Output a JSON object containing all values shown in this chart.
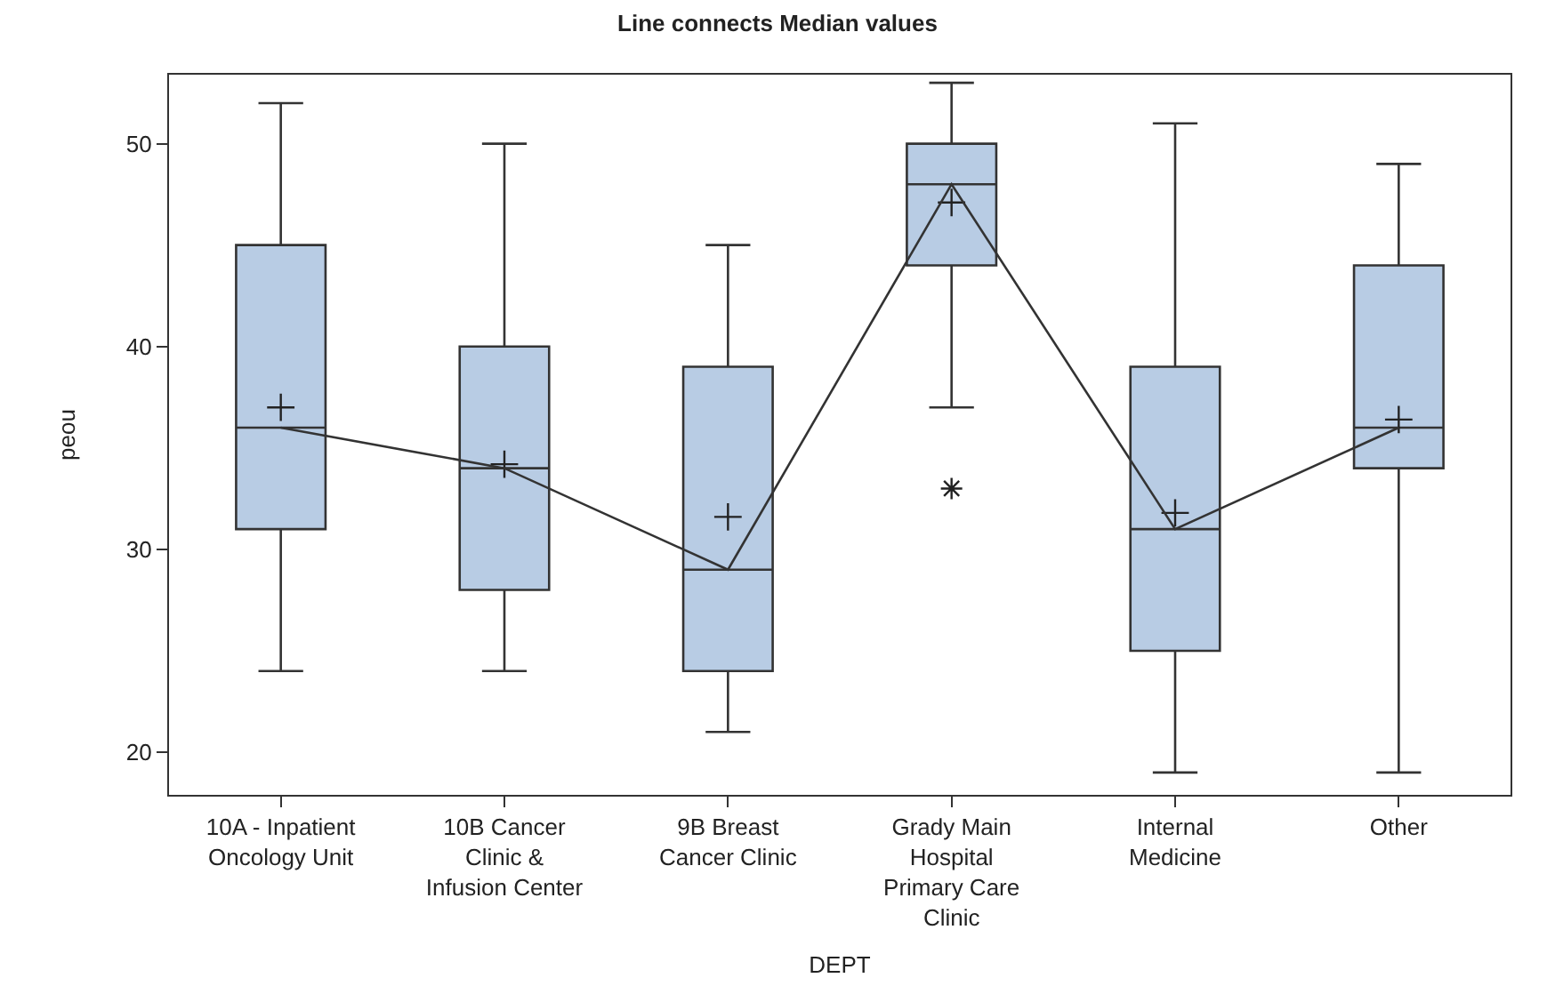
{
  "chart_data": {
    "type": "box",
    "title": "Line connects Median values",
    "xlabel": "DEPT",
    "ylabel": "peou",
    "categories": [
      "10A - Inpatient Oncology Unit",
      "10B Cancer Clinic & Infusion Center",
      "9B Breast Cancer Clinic",
      "Grady Main Hospital Primary Care Clinic",
      "Internal Medicine",
      "Other"
    ],
    "series": [
      {
        "color": "#b8cce4",
        "boxes": [
          {
            "low": 24,
            "q1": 31,
            "median": 36,
            "q3": 45,
            "high": 52,
            "mean": 37.0
          },
          {
            "low": 24,
            "q1": 28,
            "median": 34,
            "q3": 40,
            "high": 50,
            "mean": 34.2
          },
          {
            "low": 21,
            "q1": 24,
            "median": 29,
            "q3": 39,
            "high": 45,
            "mean": 31.6
          },
          {
            "low": 37,
            "q1": 44,
            "median": 48,
            "q3": 50,
            "high": 53,
            "mean": 47.1,
            "outliers": [
              33
            ]
          },
          {
            "low": 19,
            "q1": 25,
            "median": 31,
            "q3": 39,
            "high": 51,
            "mean": 31.8
          },
          {
            "low": 19,
            "q1": 34,
            "median": 36,
            "q3": 44,
            "high": 49,
            "mean": 36.4
          }
        ]
      },
      {
        "type": "line",
        "color": "#333333",
        "values": [
          36,
          34,
          29,
          48,
          31,
          36
        ]
      }
    ],
    "ylim": [
      17.9,
      53.4
    ],
    "yticks": [
      20,
      30,
      40,
      50
    ]
  }
}
